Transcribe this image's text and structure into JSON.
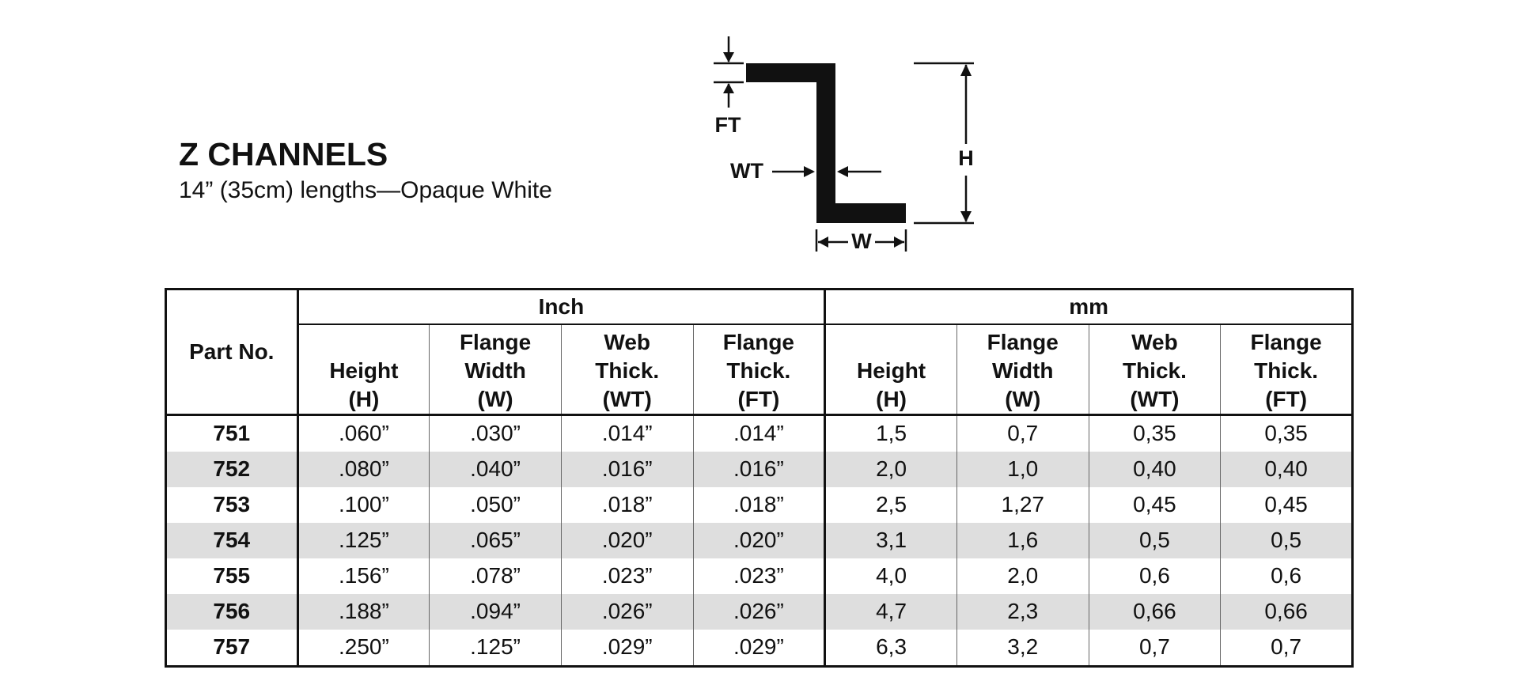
{
  "header": {
    "title": "Z CHANNELS",
    "subtitle": "14” (35cm) lengths—Opaque White"
  },
  "diagram": {
    "labels": {
      "ft": "FT",
      "wt": "WT",
      "h": "H",
      "w": "W"
    }
  },
  "table": {
    "part_header": "Part No.",
    "groups": [
      "Inch",
      "mm"
    ],
    "columns": [
      "Height\n(H)",
      "Flange\nWidth\n(W)",
      "Web\nThick.\n(WT)",
      "Flange\nThick.\n(FT)",
      "Height\n(H)",
      "Flange\nWidth\n(W)",
      "Web\nThick.\n(WT)",
      "Flange\nThick.\n(FT)"
    ],
    "rows": [
      [
        "751",
        ".060”",
        ".030”",
        ".014”",
        ".014”",
        "1,5",
        "0,7",
        "0,35",
        "0,35"
      ],
      [
        "752",
        ".080”",
        ".040”",
        ".016”",
        ".016”",
        "2,0",
        "1,0",
        "0,40",
        "0,40"
      ],
      [
        "753",
        ".100”",
        ".050”",
        ".018”",
        ".018”",
        "2,5",
        "1,27",
        "0,45",
        "0,45"
      ],
      [
        "754",
        ".125”",
        ".065”",
        ".020”",
        ".020”",
        "3,1",
        "1,6",
        "0,5",
        "0,5"
      ],
      [
        "755",
        ".156”",
        ".078”",
        ".023”",
        ".023”",
        "4,0",
        "2,0",
        "0,6",
        "0,6"
      ],
      [
        "756",
        ".188”",
        ".094”",
        ".026”",
        ".026”",
        "4,7",
        "2,3",
        "0,66",
        "0,66"
      ],
      [
        "757",
        ".250”",
        ".125”",
        ".029”",
        ".029”",
        "6,3",
        "3,2",
        "0,7",
        "0,7"
      ]
    ]
  }
}
